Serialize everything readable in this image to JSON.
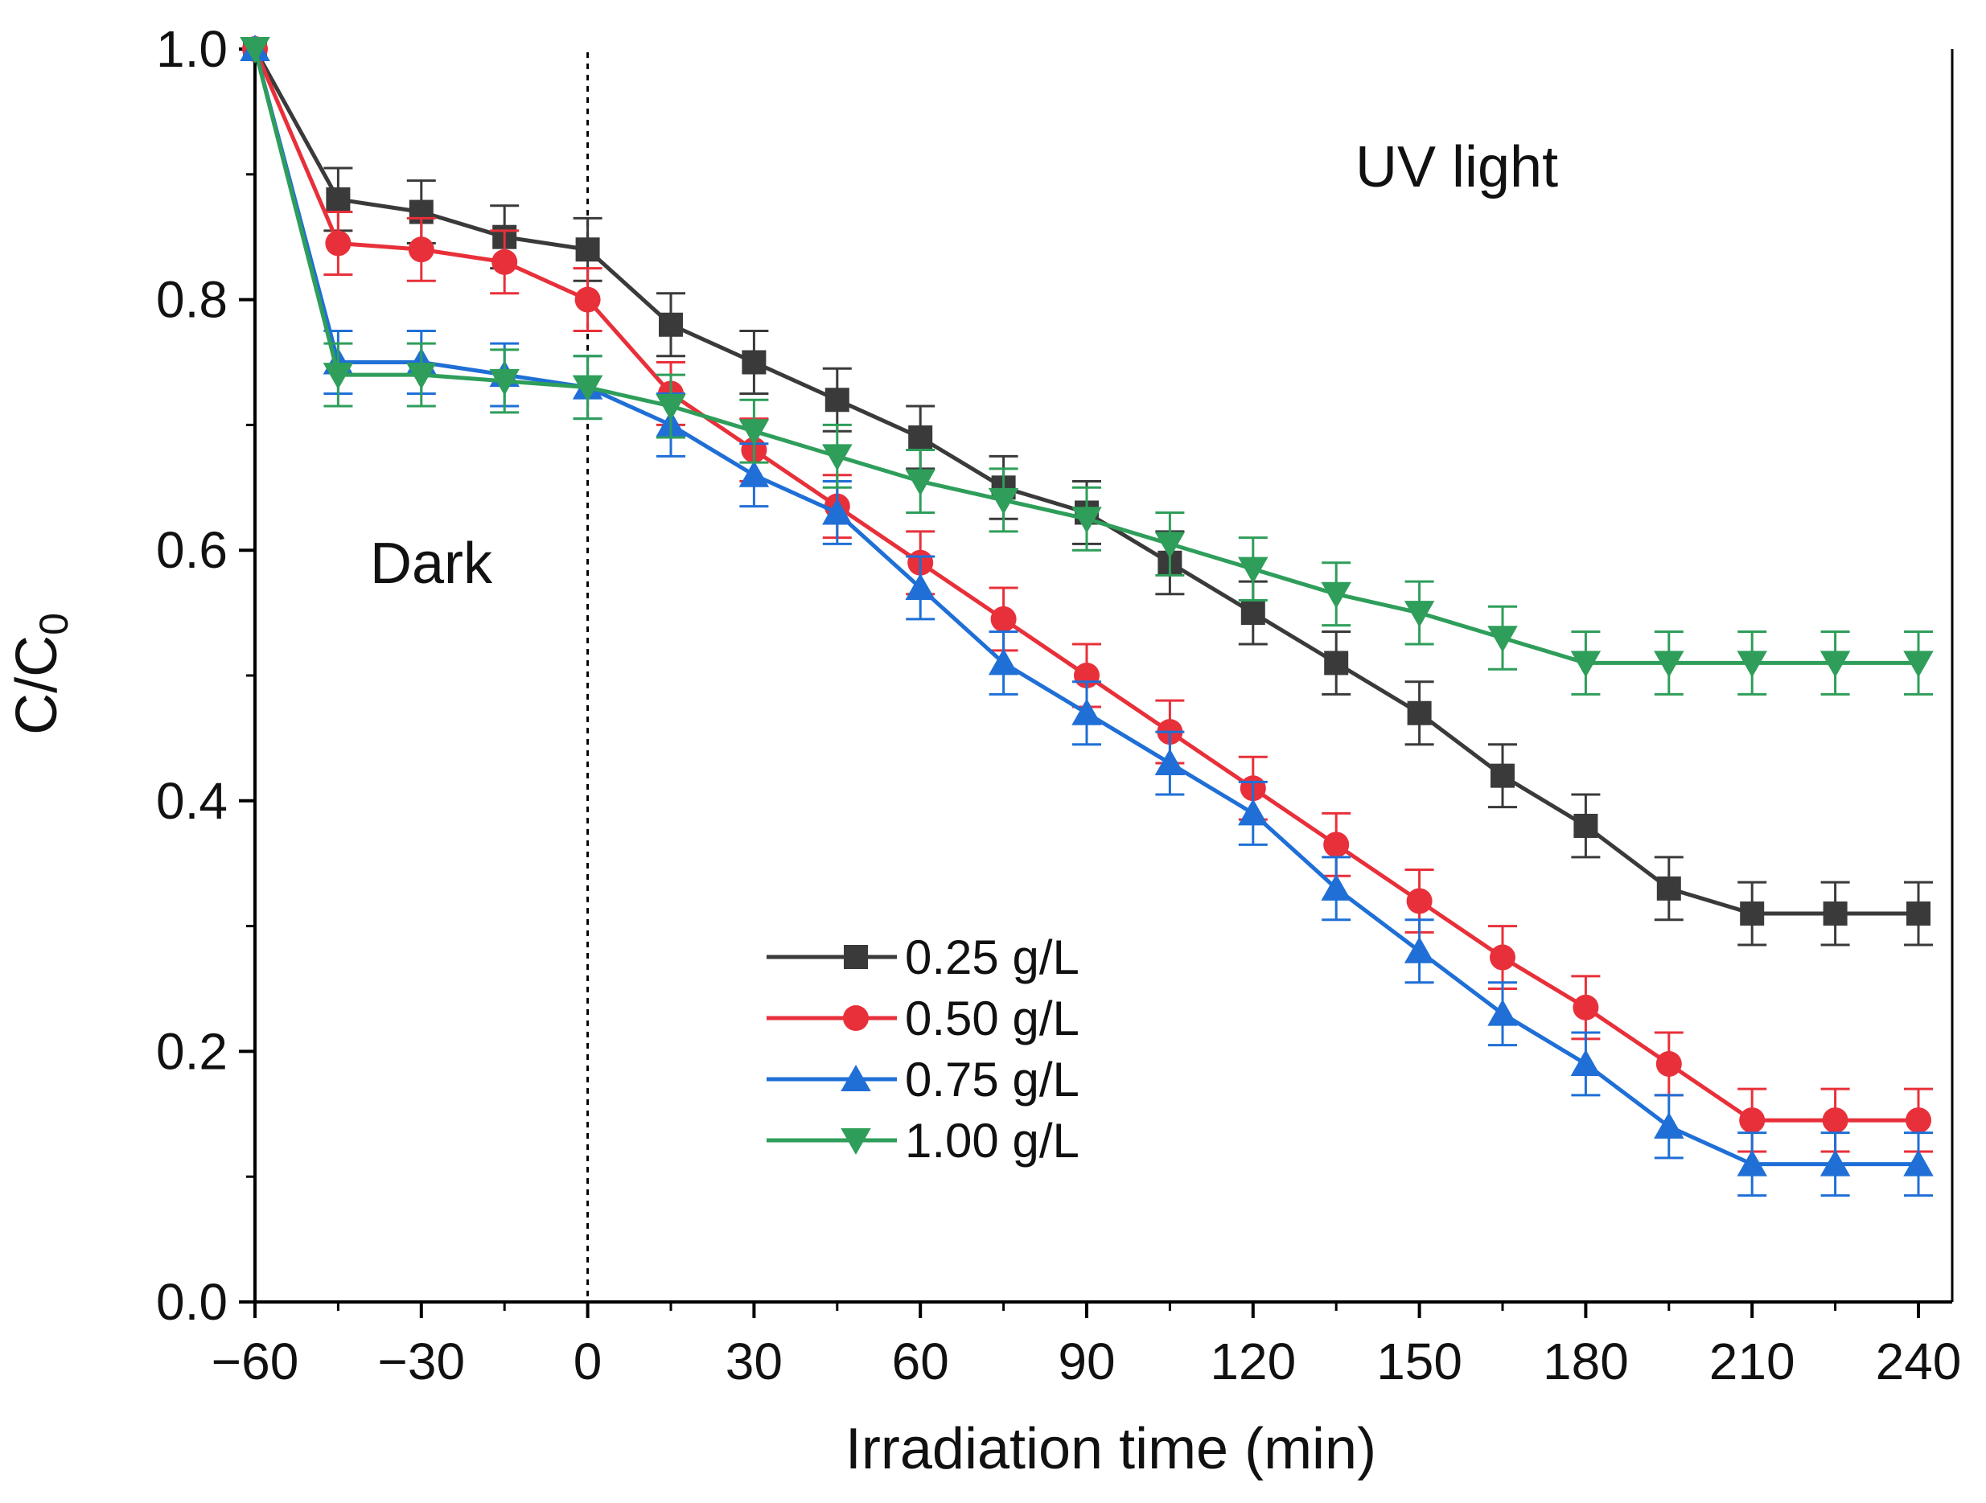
{
  "chart_data": {
    "type": "line",
    "title": "",
    "xlabel": "Irradiation time (min)",
    "ylabel_main": "C/C",
    "ylabel_sub": "0",
    "xlim": [
      -60,
      240
    ],
    "ylim": [
      0.0,
      1.0
    ],
    "xticks": [
      -60,
      -30,
      0,
      30,
      60,
      90,
      120,
      150,
      180,
      210,
      240
    ],
    "xtick_labels": [
      "−60",
      "−30",
      "0",
      "30",
      "60",
      "90",
      "120",
      "150",
      "180",
      "210",
      "240"
    ],
    "yticks": [
      0.0,
      0.2,
      0.4,
      0.6,
      0.8,
      1.0
    ],
    "ytick_labels": [
      "0.0",
      "0.2",
      "0.4",
      "0.6",
      "0.8",
      "1.0"
    ],
    "x": [
      -60,
      -45,
      -30,
      -15,
      0,
      15,
      30,
      45,
      60,
      75,
      90,
      105,
      120,
      135,
      150,
      165,
      180,
      195,
      210,
      225,
      240
    ],
    "error": 0.025,
    "divider_x": 0,
    "annotations": [
      {
        "name": "dark-label",
        "text": "Dark"
      },
      {
        "name": "uv-light-label",
        "text": "UV light"
      }
    ],
    "legend_position": "lower-center",
    "series": [
      {
        "name": "0.25 g/L",
        "color": "#3a3a3a",
        "marker": "square",
        "values": [
          1.0,
          0.88,
          0.87,
          0.85,
          0.84,
          0.78,
          0.75,
          0.72,
          0.69,
          0.65,
          0.63,
          0.59,
          0.55,
          0.51,
          0.47,
          0.42,
          0.38,
          0.33,
          0.31,
          0.31,
          0.31
        ]
      },
      {
        "name": "0.50 g/L",
        "color": "#e8303a",
        "marker": "circle",
        "values": [
          1.0,
          0.845,
          0.84,
          0.83,
          0.8,
          0.725,
          0.68,
          0.635,
          0.59,
          0.545,
          0.5,
          0.455,
          0.41,
          0.365,
          0.32,
          0.275,
          0.235,
          0.19,
          0.145,
          0.145,
          0.145
        ]
      },
      {
        "name": "0.75 g/L",
        "color": "#1f6fd6",
        "marker": "triangle-up",
        "values": [
          1.0,
          0.75,
          0.75,
          0.74,
          0.73,
          0.7,
          0.66,
          0.63,
          0.57,
          0.51,
          0.47,
          0.43,
          0.39,
          0.33,
          0.28,
          0.23,
          0.19,
          0.14,
          0.11,
          0.11,
          0.11
        ]
      },
      {
        "name": "1.00 g/L",
        "color": "#2e9e5a",
        "marker": "triangle-down",
        "values": [
          1.0,
          0.74,
          0.74,
          0.735,
          0.73,
          0.715,
          0.695,
          0.675,
          0.655,
          0.64,
          0.625,
          0.605,
          0.585,
          0.565,
          0.55,
          0.53,
          0.51,
          0.51,
          0.51,
          0.51,
          0.51
        ]
      }
    ]
  }
}
